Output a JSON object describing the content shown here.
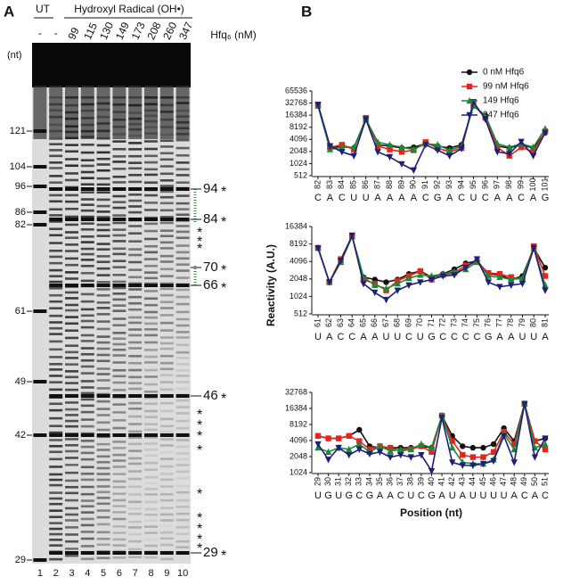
{
  "gel": {
    "panel_label": "A",
    "ut": "UT",
    "condition": "Hydroxyl Radical (OH•)",
    "hfq_label": "Hfq₆ (nM)",
    "unit_label": "(nt)",
    "star": "*",
    "lane_headers": [
      "-",
      "-",
      "99",
      "115",
      "130",
      "149",
      "173",
      "208",
      "260",
      "347"
    ],
    "lane_numbers": [
      1,
      2,
      3,
      4,
      5,
      6,
      7,
      8,
      9,
      10
    ],
    "left_markers": [
      121,
      104,
      96,
      86,
      82,
      61,
      49,
      42,
      29
    ],
    "right_markers": [
      94,
      84,
      70,
      66,
      46,
      29
    ]
  },
  "panel_b_label": "B",
  "ylabel": "Reactivity (A.U.)",
  "xlabel": "Position (nt)",
  "chart_data": [
    {
      "type": "line",
      "yscale": "log",
      "legend": "top-right",
      "ylim": [
        512,
        65536
      ],
      "yticks": [
        512,
        1024,
        2048,
        4096,
        8192,
        16384,
        32768,
        65536
      ],
      "categories": [
        "82",
        "83",
        "84",
        "85",
        "86",
        "87",
        "88",
        "89",
        "90",
        "91",
        "92",
        "93",
        "94",
        "95",
        "96",
        "97",
        "98",
        "99",
        "100",
        "101"
      ],
      "nucleotides": [
        "C",
        "A",
        "C",
        "U",
        "U",
        "A",
        "A",
        "A",
        "A",
        "C",
        "G",
        "A",
        "C",
        "U",
        "C",
        "A",
        "A",
        "C",
        "A",
        "G"
      ],
      "nucleotide_colors": [
        "#222",
        "#222",
        "#2e9b3e",
        "#2e9b3e",
        "#222",
        "#2e9b3e",
        "#2e9b3e",
        "#2e9b3e",
        "#2e9b3e",
        "#2e9b3e",
        "#2e9b3e",
        "#2e9b3e",
        "#2e9b3e",
        "#222",
        "#222",
        "#222",
        "#2e9b3e",
        "#222",
        "#222",
        "#222"
      ],
      "series": [
        {
          "name": "0 nM Hfq6",
          "color": "#111111",
          "marker": "circle",
          "values": [
            28000,
            2500,
            2800,
            2500,
            13000,
            3000,
            2800,
            2500,
            2600,
            3200,
            2800,
            2500,
            3000,
            28000,
            16000,
            2800,
            2500,
            3000,
            2500,
            6000
          ]
        },
        {
          "name": "99 nM Hfq6",
          "color": "#e8231d",
          "marker": "square",
          "values": [
            30000,
            2600,
            3000,
            2300,
            14000,
            2800,
            2300,
            2000,
            2200,
            3500,
            2500,
            2000,
            2500,
            30000,
            14000,
            2600,
            1600,
            2600,
            2000,
            6500
          ]
        },
        {
          "name": "149 Hfq6",
          "color": "#1a8a3a",
          "marker": "triangle",
          "values": [
            28000,
            2300,
            2600,
            2600,
            13000,
            3500,
            3000,
            2600,
            2300,
            3200,
            3000,
            2200,
            2800,
            28000,
            16000,
            3200,
            2600,
            3200,
            2600,
            7500
          ]
        },
        {
          "name": "347 Hfq6",
          "color": "#1d1f7a",
          "marker": "triangle-down",
          "values": [
            30000,
            2800,
            2000,
            1600,
            13000,
            2000,
            1500,
            1000,
            700,
            3000,
            2200,
            1600,
            2400,
            35000,
            13000,
            2000,
            1800,
            3600,
            1600,
            6000
          ]
        }
      ]
    },
    {
      "type": "line",
      "yscale": "log",
      "ylim": [
        512,
        16384
      ],
      "yticks": [
        512,
        1024,
        2048,
        4096,
        8192,
        16384
      ],
      "categories": [
        "61",
        "62",
        "63",
        "64",
        "65",
        "66",
        "67",
        "68",
        "69",
        "70",
        "71",
        "72",
        "73",
        "74",
        "75",
        "76",
        "77",
        "78",
        "79",
        "80",
        "81"
      ],
      "nucleotides": [
        "U",
        "A",
        "C",
        "C",
        "A",
        "A",
        "U",
        "U",
        "C",
        "U",
        "G",
        "C",
        "C",
        "C",
        "C",
        "G",
        "A",
        "A",
        "U",
        "U",
        "A"
      ],
      "nucleotide_colors": [
        "#222",
        "#222",
        "#222",
        "#222",
        "#222",
        "#2e9b3e",
        "#2e9b3e",
        "#2e9b3e",
        "#2e9b3e",
        "#7b2d8e",
        "#222",
        "#222",
        "#222",
        "#222",
        "#222",
        "#222",
        "#2e9b3e",
        "#222",
        "#2e9b3e",
        "#222",
        "#2e9b3e"
      ],
      "series": [
        {
          "color": "#111111",
          "marker": "circle",
          "values": [
            7000,
            1800,
            4000,
            11000,
            2200,
            2000,
            1800,
            2000,
            2500,
            2800,
            2200,
            2500,
            3000,
            3800,
            4200,
            2500,
            2400,
            2000,
            2300,
            7000,
            3200
          ]
        },
        {
          "color": "#e8231d",
          "marker": "square",
          "values": [
            7000,
            1800,
            4500,
            11000,
            2000,
            1700,
            1300,
            1900,
            2300,
            2800,
            2000,
            2400,
            2600,
            3500,
            4000,
            2600,
            2500,
            2200,
            2000,
            7500,
            2300
          ]
        },
        {
          "color": "#1a8a3a",
          "marker": "triangle",
          "values": [
            7000,
            1800,
            4000,
            11000,
            2200,
            1600,
            1400,
            1700,
            2100,
            2400,
            2300,
            2500,
            2700,
            3000,
            4000,
            2300,
            2200,
            2000,
            2100,
            7000,
            1600
          ]
        },
        {
          "color": "#1d1f7a",
          "marker": "triangle-down",
          "values": [
            7000,
            1800,
            4200,
            11500,
            1700,
            1200,
            900,
            1300,
            1600,
            1800,
            2000,
            2300,
            2400,
            3200,
            4500,
            1800,
            1500,
            1600,
            1700,
            7000,
            1300
          ]
        }
      ]
    },
    {
      "type": "line",
      "yscale": "log",
      "ylim": [
        1024,
        32768
      ],
      "yticks": [
        1024,
        2048,
        4096,
        8192,
        16384,
        32768
      ],
      "categories": [
        "29",
        "30",
        "31",
        "32",
        "33",
        "34",
        "35",
        "36",
        "37",
        "38",
        "39",
        "40",
        "41",
        "42",
        "43",
        "44",
        "45",
        "46",
        "47",
        "48",
        "49",
        "50",
        "51"
      ],
      "nucleotides": [
        "U",
        "G",
        "U",
        "G",
        "C",
        "G",
        "A",
        "A",
        "C",
        "U",
        "C",
        "G",
        "A",
        "U",
        "A",
        "U",
        "U",
        "U",
        "U",
        "A",
        "C",
        "A",
        "C"
      ],
      "nucleotide_colors": [
        "#2e9b3e",
        "#2e9b3e",
        "#2e9b3e",
        "#2e9b3e",
        "#2e9b3e",
        "#222",
        "#7b2d8e",
        "#222",
        "#222",
        "#222",
        "#222",
        "#2e9b3e",
        "#2e9b3e",
        "#2e9b3e",
        "#2e9b3e",
        "#2e9b3e",
        "#2e9b3e",
        "#2e9b3e",
        "#2e9b3e",
        "#222",
        "#222",
        "#222",
        "#222"
      ],
      "series": [
        {
          "color": "#111111",
          "marker": "circle",
          "values": [
            5000,
            4500,
            4500,
            5000,
            6500,
            3200,
            3000,
            3000,
            3000,
            3000,
            3200,
            3000,
            12000,
            5000,
            3200,
            3000,
            3000,
            3500,
            7000,
            4000,
            20000,
            4000,
            4500
          ]
        },
        {
          "color": "#e8231d",
          "marker": "square",
          "values": [
            5000,
            4500,
            4500,
            5000,
            4000,
            2800,
            3200,
            3000,
            2600,
            2800,
            3200,
            2500,
            12000,
            4000,
            2200,
            2000,
            2000,
            2500,
            6000,
            3500,
            20000,
            4000,
            2800
          ]
        },
        {
          "color": "#1a8a3a",
          "marker": "triangle",
          "values": [
            3000,
            2500,
            3000,
            2800,
            3500,
            2500,
            3200,
            2600,
            2800,
            2800,
            3500,
            3000,
            12000,
            3000,
            1600,
            1500,
            1500,
            1800,
            5500,
            2800,
            20000,
            3000,
            3500
          ]
        },
        {
          "color": "#1d1f7a",
          "marker": "triangle-down",
          "values": [
            3500,
            1800,
            3000,
            2200,
            2800,
            2300,
            2500,
            2000,
            2200,
            2000,
            2200,
            1100,
            11000,
            1600,
            1400,
            1400,
            1500,
            1700,
            5000,
            1600,
            20000,
            2000,
            4500
          ]
        }
      ]
    }
  ]
}
